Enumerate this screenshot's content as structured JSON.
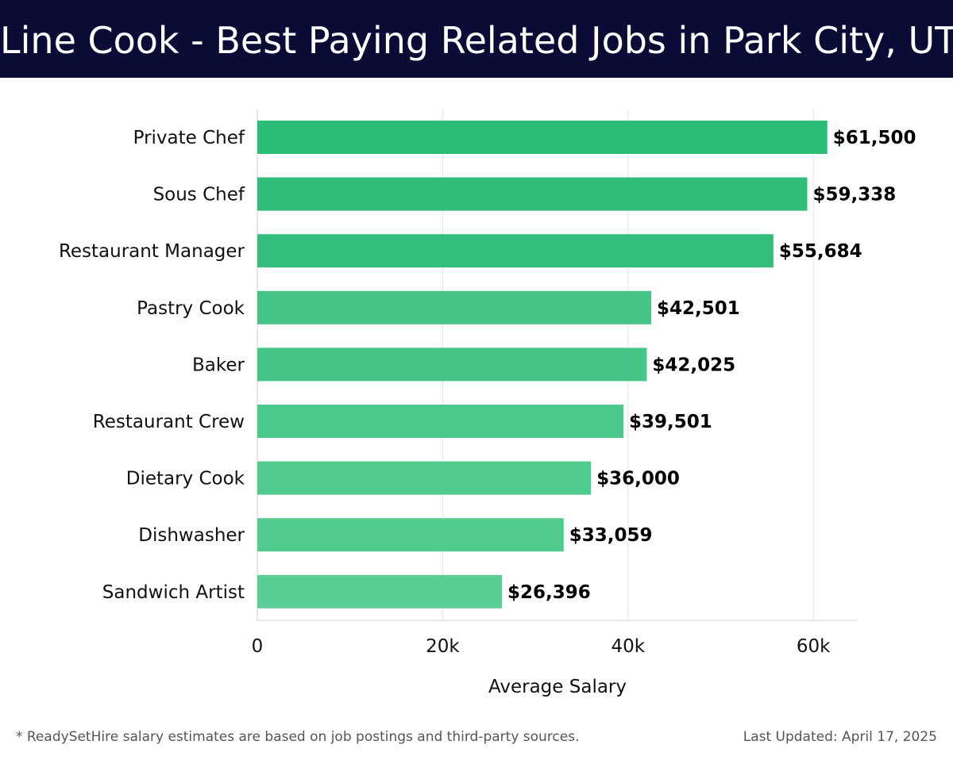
{
  "header": {
    "title": "Line Cook - Best Paying Related Jobs in Park City, UT"
  },
  "footer": {
    "note": "* ReadySetHire salary estimates are based on job postings and third-party sources.",
    "updated": "Last Updated: April 17, 2025"
  },
  "colors": {
    "header_bg": "#0b0c35",
    "bar_colors": [
      "#2abd76",
      "#2fbd78",
      "#33be7b",
      "#44c585",
      "#45c686",
      "#4bc98a",
      "#50ca8d",
      "#52cb8f",
      "#5bce95"
    ]
  },
  "chart_data": {
    "type": "bar",
    "orientation": "horizontal",
    "categories": [
      "Private Chef",
      "Sous Chef",
      "Restaurant Manager",
      "Pastry Cook",
      "Baker",
      "Restaurant Crew",
      "Dietary Cook",
      "Dishwasher",
      "Sandwich Artist"
    ],
    "values": [
      61500,
      59338,
      55684,
      42501,
      42025,
      39501,
      36000,
      33059,
      26396
    ],
    "value_labels": [
      "$61,500",
      "$59,338",
      "$55,684",
      "$42,501",
      "$42,025",
      "$39,501",
      "$36,000",
      "$33,059",
      "$26,396"
    ],
    "xlabel": "Average Salary",
    "ylabel": "",
    "xlim": [
      0,
      65000
    ],
    "xticks": [
      0,
      20000,
      40000,
      60000
    ],
    "xtick_labels": [
      "0",
      "20k",
      "40k",
      "60k"
    ],
    "grid": true,
    "legend": "none"
  }
}
